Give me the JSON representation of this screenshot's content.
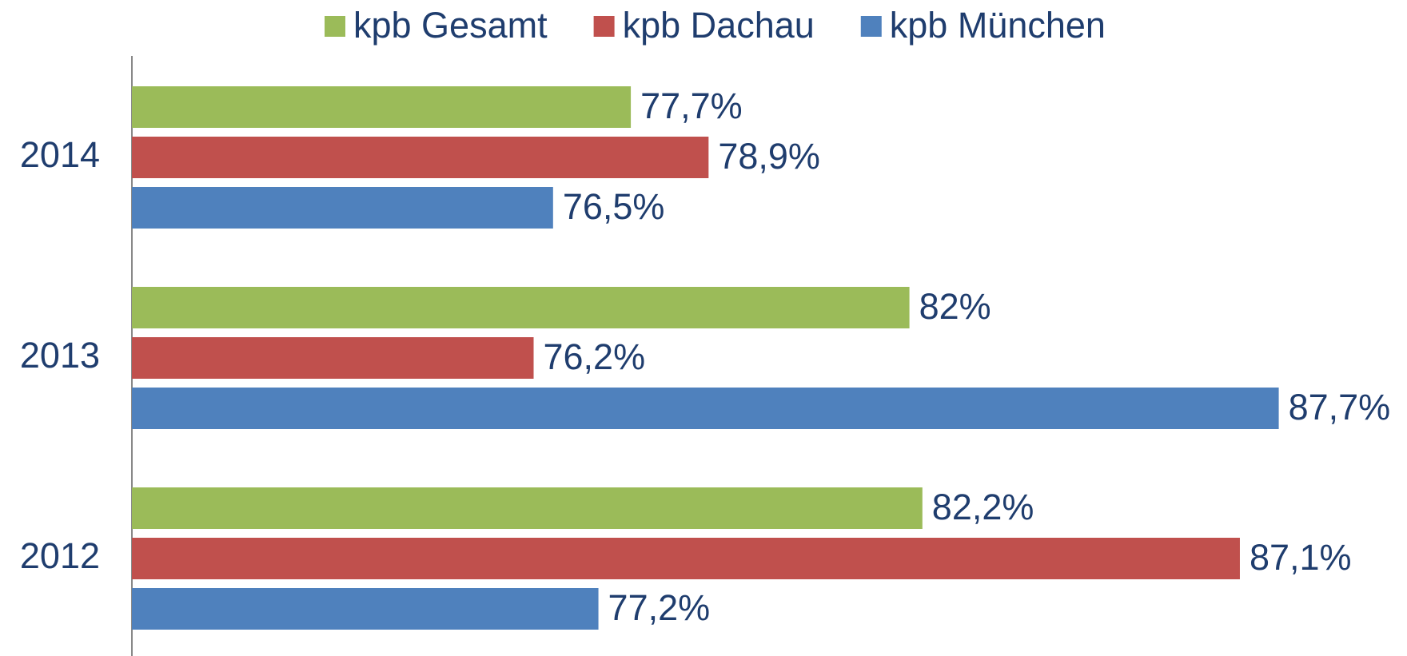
{
  "chart_data": {
    "type": "hbar",
    "categories": [
      "2014",
      "2013",
      "2012"
    ],
    "series": [
      {
        "name": "kpb Gesamt",
        "color": "#9bbb59",
        "values": [
          77.7,
          82,
          82.2
        ],
        "value_labels": [
          "77,7%",
          "82%",
          "82,2%"
        ]
      },
      {
        "name": "kpb Dachau",
        "color": "#c0504d",
        "values": [
          78.9,
          76.2,
          87.1
        ],
        "value_labels": [
          "78,9%",
          "76,2%",
          "87,1%"
        ]
      },
      {
        "name": "kpb München",
        "color": "#4f81bd",
        "values": [
          76.5,
          87.7,
          77.2
        ],
        "value_labels": [
          "76,5%",
          "87,7%",
          "77,2%"
        ]
      }
    ],
    "xlim": [
      70,
      90
    ],
    "legend": "top"
  }
}
